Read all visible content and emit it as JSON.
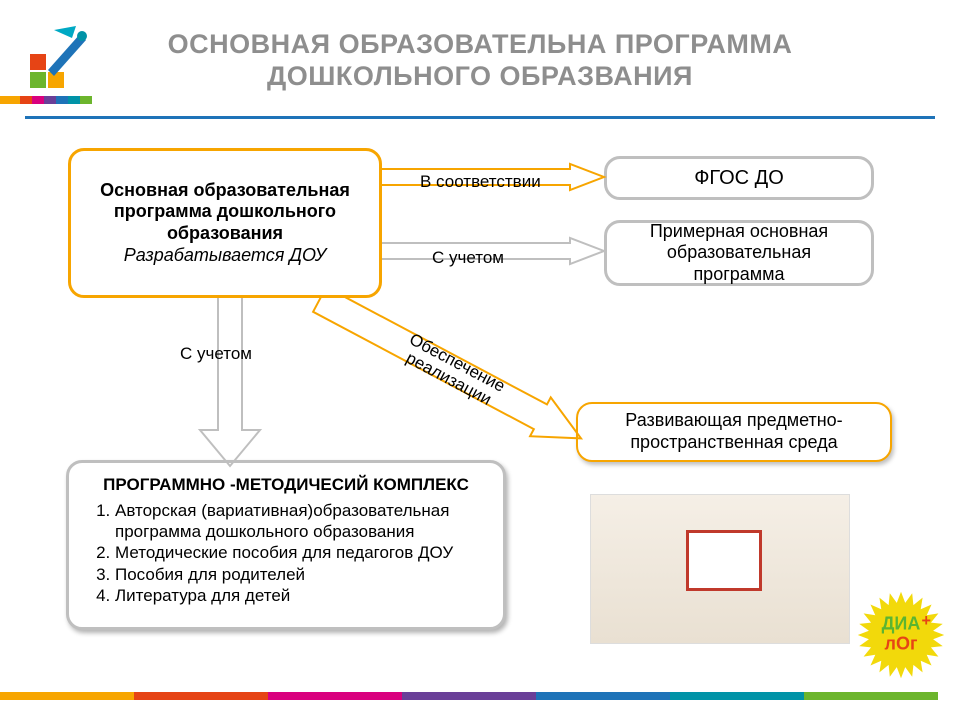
{
  "title_line1": "ОСНОВНАЯ ОБРАЗОВАТЕЛЬНА ПРОГРАММА",
  "title_line2": "ДОШКОЛЬНОГО ОБРАЗВАНИЯ",
  "stripes": {
    "colors": [
      "#f7a500",
      "#e64415",
      "#d9007e",
      "#6a3f98",
      "#1e73b8",
      "#0093a7",
      "#6cb52d"
    ],
    "top_widths": [
      20,
      12,
      12,
      12,
      12,
      12,
      12
    ],
    "bottom_width_each": 134
  },
  "main_box": {
    "bold": "Основная образовательная программа дошкольного образования",
    "italic": "Разрабатывается ДОУ"
  },
  "fgos": "ФГОС ДО",
  "primer": "Примерная основная образовательная программа",
  "env": "Развивающая предметно-пространственная среда",
  "arrows": {
    "label1": "В соответствии",
    "label2": "С учетом",
    "label3": "С учетом",
    "label4a": "Обеспечение",
    "label4b": "реализации",
    "orange": "#f7a500",
    "gray": "#bfbfbf"
  },
  "pmk": {
    "title": "ПРОГРАММНО -МЕТОДИЧЕСИЙ КОМПЛЕКС",
    "items": [
      "Авторская (вариативная)образовательная программа дошкольного образования",
      "Методические пособия для педагогов ДОУ",
      "Пособия для родителей",
      "Литература для детей"
    ]
  },
  "badge": {
    "top": "ДИА",
    "plus": "+",
    "bottom": "лОг",
    "fill": "#f2d90b",
    "text_top": "#5bb531",
    "text_bottom": "#e64415"
  }
}
